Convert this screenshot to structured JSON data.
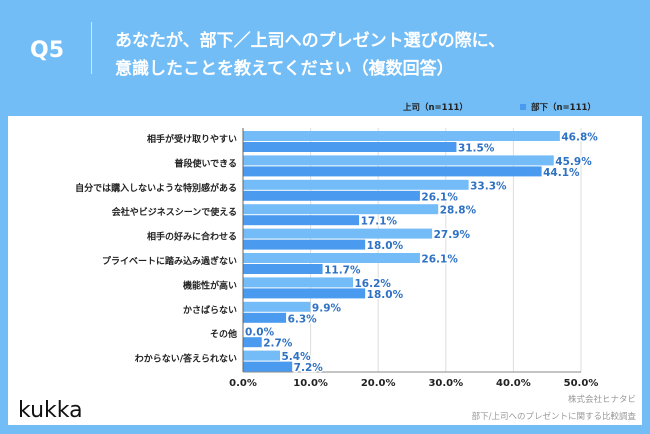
{
  "header": {
    "q": "Q5",
    "title_line1": "あなたが、部下／上司へのプレゼント選びの際に、",
    "title_line2": "意識したことを教えてください（複数回答）"
  },
  "footer": {
    "brand": "kukka",
    "source1": "株式会社ヒナタビ",
    "source2": "部下/上司へのプレゼントに関する比較調査"
  },
  "colors": {
    "boss": "#74bcf8",
    "sub": "#4a9bef",
    "label": "#2f72c4"
  },
  "chart_data": {
    "type": "bar",
    "orientation": "horizontal",
    "categories": [
      "相手が受け取りやすい",
      "普段使いできる",
      "自分では購入しないような特別感がある",
      "会社やビジネスシーンで使える",
      "相手の好みに合わせる",
      "プライベートに踏み込み過ぎない",
      "機能性が高い",
      "かさばらない",
      "その他",
      "わからない/答えられない"
    ],
    "series": [
      {
        "name": "上司（n=111）",
        "values": [
          46.8,
          45.9,
          33.3,
          28.8,
          27.9,
          26.1,
          16.2,
          9.9,
          0.0,
          5.4
        ]
      },
      {
        "name": "部下（n=111）",
        "values": [
          31.5,
          44.1,
          26.1,
          17.1,
          18.0,
          11.7,
          18.0,
          6.3,
          2.7,
          7.2
        ]
      }
    ],
    "xlim": [
      0,
      50
    ],
    "xticks": [
      "0.0%",
      "10.0%",
      "20.0%",
      "30.0%",
      "40.0%",
      "50.0%"
    ],
    "legend": "top-right",
    "grid": true
  }
}
